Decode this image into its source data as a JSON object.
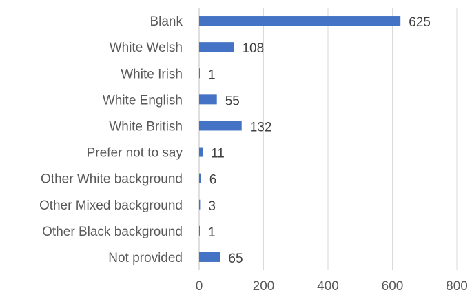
{
  "chart_data": {
    "type": "bar",
    "orientation": "horizontal",
    "categories": [
      "Blank",
      "White Welsh",
      "White Irish",
      "White English",
      "White British",
      "Prefer not to say",
      "Other White background",
      "Other Mixed background",
      "Other Black background",
      "Not provided"
    ],
    "values": [
      625,
      108,
      1,
      55,
      132,
      11,
      6,
      3,
      1,
      65
    ],
    "x_ticks": [
      0,
      200,
      400,
      600,
      800
    ],
    "xlim": [
      0,
      800
    ],
    "title": "",
    "xlabel": "",
    "ylabel": "",
    "grid": "vertical",
    "legend": "none",
    "bar_color": "#4472c4"
  }
}
